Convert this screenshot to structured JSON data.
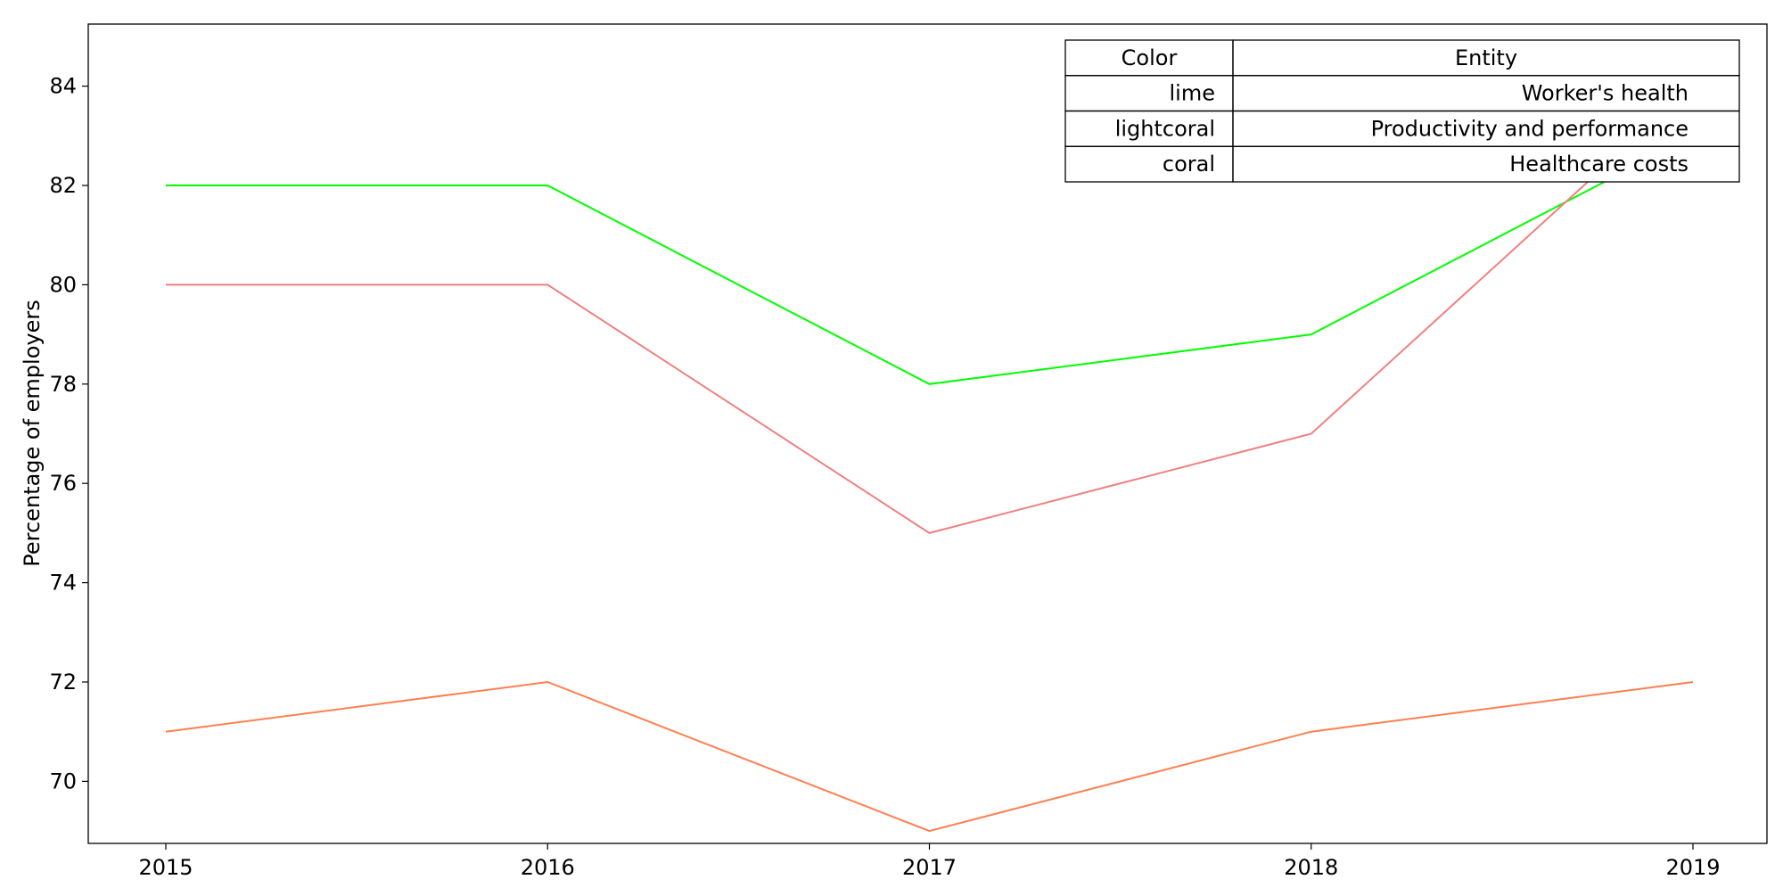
{
  "chart_data": {
    "type": "line",
    "title": "",
    "xlabel": "",
    "ylabel": "Percentage of employers",
    "x": [
      2015,
      2016,
      2017,
      2018,
      2019
    ],
    "x_tick_labels": [
      "2015",
      "2016",
      "2017",
      "2018",
      "2019"
    ],
    "ylim": [
      68.75,
      85.25
    ],
    "y_ticks": [
      70,
      72,
      74,
      76,
      78,
      80,
      82,
      84
    ],
    "grid": false,
    "series": [
      {
        "name": "Worker's health",
        "color": "#00ff00",
        "values": [
          82,
          82,
          78,
          79,
          83
        ]
      },
      {
        "name": "Productivity and performance",
        "color": "#f08080",
        "values": [
          80,
          80,
          75,
          77,
          84
        ]
      },
      {
        "name": "Healthcare costs",
        "color": "#ff7f50",
        "values": [
          71,
          72,
          69,
          71,
          72
        ]
      }
    ],
    "legend_table": {
      "placement": "top-right",
      "headers": [
        "Color",
        "Entity"
      ],
      "rows": [
        [
          "lime",
          "Worker's health"
        ],
        [
          "lightcoral",
          "Productivity and performance"
        ],
        [
          "coral",
          "Healthcare costs"
        ]
      ]
    }
  }
}
